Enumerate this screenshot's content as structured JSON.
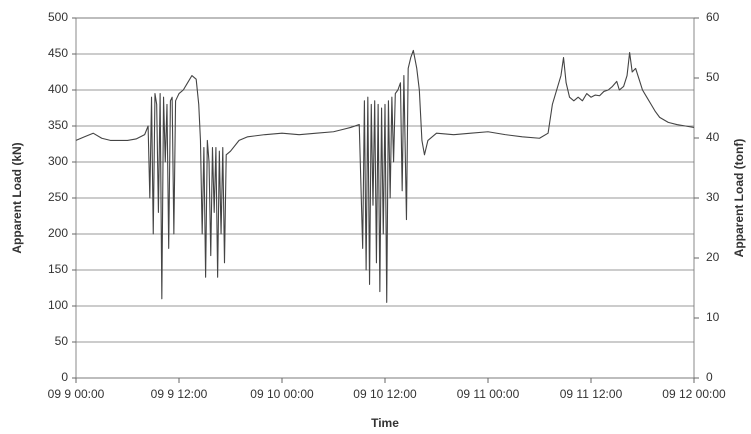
{
  "chart_data": {
    "type": "line",
    "xlabel": "Time",
    "ylabel": "Apparent Load (kN)",
    "y2label": "Apparent Load (tonf)",
    "xlim": [
      0,
      72
    ],
    "xticks": [
      {
        "value": 0,
        "label": "09 9 00:00"
      },
      {
        "value": 12,
        "label": "09 9 12:00"
      },
      {
        "value": 24,
        "label": "09 10 00:00"
      },
      {
        "value": 36,
        "label": "09 10 12:00"
      },
      {
        "value": 48,
        "label": "09 11 00:00"
      },
      {
        "value": 60,
        "label": "09 11 12:00"
      },
      {
        "value": 72,
        "label": "09 12 00:00"
      }
    ],
    "ylim": [
      0,
      500
    ],
    "yticks": [
      0,
      50,
      100,
      150,
      200,
      250,
      300,
      350,
      400,
      450,
      500
    ],
    "y2lim": [
      0,
      60
    ],
    "y2ticks": [
      0,
      10,
      20,
      30,
      40,
      50,
      60
    ],
    "grid": true,
    "x": [
      0,
      1,
      2,
      3,
      4,
      5,
      6,
      7,
      8,
      8.4,
      8.6,
      8.8,
      9.0,
      9.2,
      9.4,
      9.6,
      9.8,
      10.0,
      10.2,
      10.4,
      10.6,
      10.8,
      11.0,
      11.2,
      11.4,
      11.6,
      11.8,
      12.0,
      12.5,
      13.0,
      13.5,
      14.0,
      14.3,
      14.5,
      14.7,
      14.9,
      15.1,
      15.3,
      15.5,
      15.7,
      15.9,
      16.1,
      16.3,
      16.5,
      16.7,
      16.9,
      17.1,
      17.3,
      17.5,
      18,
      19,
      20,
      22,
      24,
      26,
      28,
      30,
      31,
      32,
      33,
      33.4,
      33.6,
      33.8,
      34.0,
      34.2,
      34.4,
      34.6,
      34.8,
      35.0,
      35.2,
      35.4,
      35.6,
      35.8,
      36.0,
      36.2,
      36.4,
      36.6,
      36.8,
      37.0,
      37.2,
      37.5,
      37.8,
      38.0,
      38.2,
      38.5,
      38.7,
      39.0,
      39.3,
      39.7,
      40.0,
      40.3,
      40.6,
      41,
      42,
      44,
      46,
      48,
      50,
      52,
      54,
      55,
      55.5,
      56,
      56.5,
      56.8,
      57.1,
      57.5,
      58,
      58.5,
      59,
      59.5,
      60,
      60.5,
      61,
      61.5,
      62,
      62.5,
      63,
      63.3,
      63.8,
      64.2,
      64.5,
      64.8,
      65.2,
      65.6,
      66,
      66.5,
      67,
      67.5,
      68,
      69,
      70,
      71,
      72
    ],
    "series": [
      {
        "color": "#444444",
        "values": [
          330,
          335,
          340,
          333,
          330,
          330,
          330,
          332,
          338,
          350,
          250,
          390,
          200,
          395,
          380,
          230,
          395,
          110,
          390,
          300,
          380,
          180,
          385,
          390,
          200,
          385,
          390,
          395,
          400,
          410,
          420,
          415,
          380,
          330,
          200,
          320,
          140,
          330,
          300,
          170,
          320,
          230,
          320,
          140,
          315,
          200,
          320,
          160,
          310,
          315,
          330,
          335,
          338,
          340,
          338,
          340,
          342,
          345,
          348,
          352,
          180,
          385,
          150,
          390,
          130,
          380,
          240,
          385,
          160,
          380,
          120,
          375,
          200,
          380,
          105,
          385,
          250,
          390,
          300,
          395,
          400,
          410,
          260,
          420,
          220,
          430,
          445,
          455,
          430,
          400,
          330,
          310,
          330,
          340,
          338,
          340,
          342,
          338,
          335,
          333,
          340,
          380,
          400,
          420,
          445,
          410,
          390,
          385,
          390,
          385,
          395,
          390,
          393,
          392,
          398,
          400,
          405,
          412,
          400,
          405,
          420,
          452,
          425,
          430,
          415,
          400,
          390,
          380,
          370,
          362,
          355,
          352,
          350,
          348
        ]
      }
    ]
  }
}
